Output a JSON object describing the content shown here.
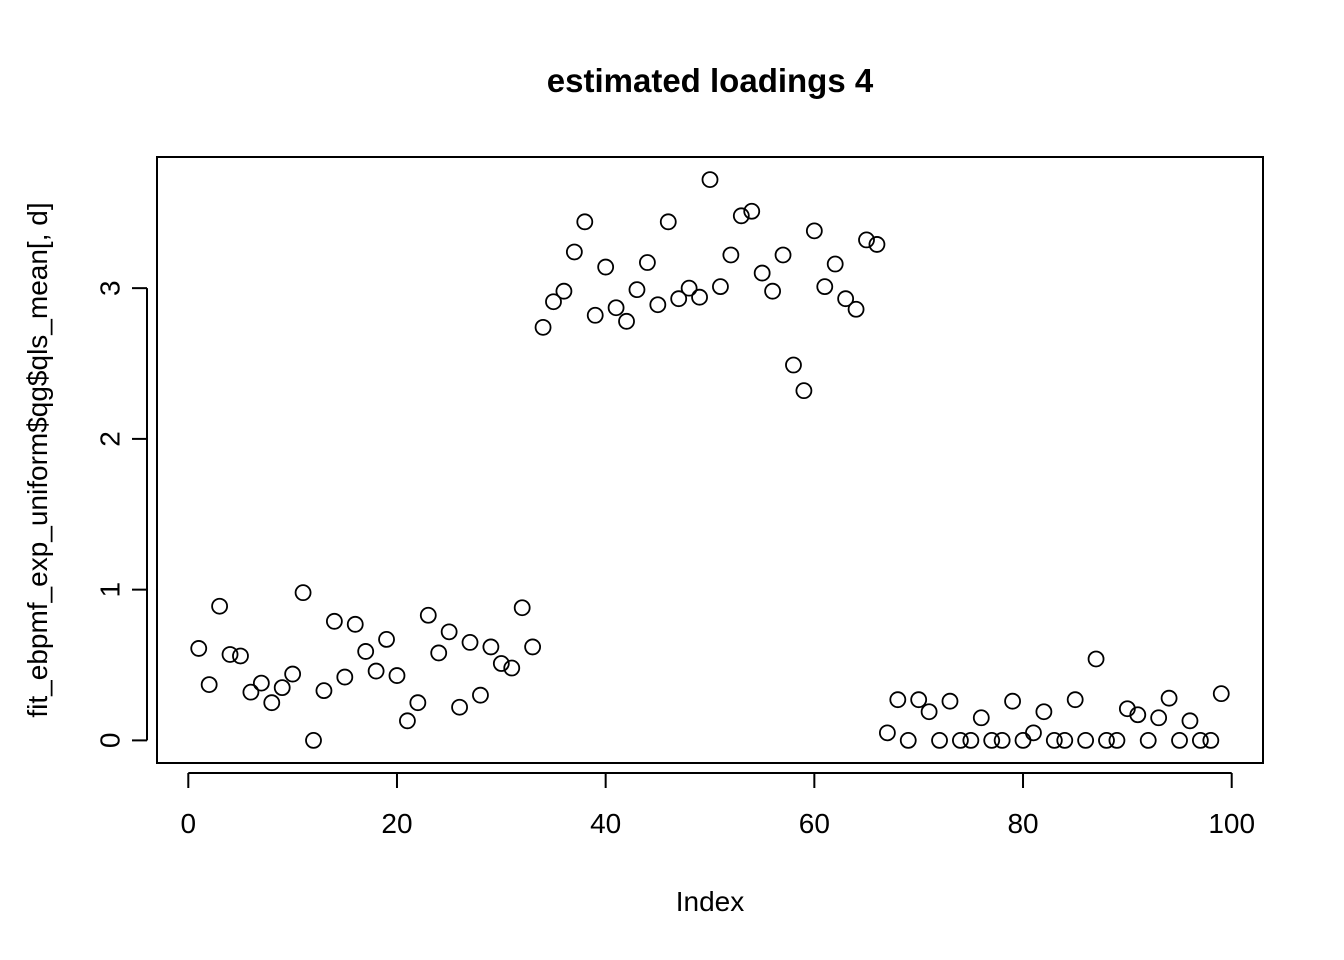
{
  "chart_data": {
    "type": "scatter",
    "title": "estimated loadings 4",
    "xlabel": "Index",
    "ylabel": "fit_ebpmf_exp_uniform$qg$qls_mean[, d]",
    "xlim": [
      -3,
      103
    ],
    "ylim": [
      -0.15,
      3.87
    ],
    "xticks": [
      0,
      20,
      40,
      60,
      80,
      100
    ],
    "xtick_labels": [
      "0",
      "20",
      "40",
      "60",
      "80",
      "100"
    ],
    "yticks": [
      0,
      1,
      2,
      3
    ],
    "ytick_labels": [
      "0",
      "1",
      "2",
      "3"
    ],
    "grid": false,
    "legend": "none",
    "marker": "open-circle",
    "x": [
      1,
      2,
      3,
      4,
      5,
      6,
      7,
      8,
      9,
      10,
      11,
      12,
      13,
      14,
      15,
      16,
      17,
      18,
      19,
      20,
      21,
      22,
      23,
      24,
      25,
      26,
      27,
      28,
      29,
      30,
      31,
      32,
      33,
      34,
      35,
      36,
      37,
      38,
      39,
      40,
      41,
      42,
      43,
      44,
      45,
      46,
      47,
      48,
      49,
      50,
      51,
      52,
      53,
      54,
      55,
      56,
      57,
      58,
      59,
      60,
      61,
      62,
      63,
      64,
      65,
      66,
      67,
      68,
      69,
      70,
      71,
      72,
      73,
      74,
      75,
      76,
      77,
      78,
      79,
      80,
      81,
      82,
      83,
      84,
      85,
      86,
      87,
      88,
      89,
      90,
      91,
      92,
      93,
      94,
      95,
      96,
      97,
      98,
      99
    ],
    "y": [
      0.61,
      0.37,
      0.89,
      0.57,
      0.56,
      0.32,
      0.38,
      0.25,
      0.35,
      0.44,
      0.98,
      0.0,
      0.33,
      0.79,
      0.42,
      0.77,
      0.59,
      0.46,
      0.67,
      0.43,
      0.13,
      0.25,
      0.83,
      0.58,
      0.72,
      0.22,
      0.65,
      0.3,
      0.62,
      0.51,
      0.48,
      0.88,
      0.62,
      2.74,
      2.91,
      2.98,
      3.24,
      3.44,
      2.82,
      3.14,
      2.87,
      2.78,
      2.99,
      3.17,
      2.89,
      3.44,
      2.93,
      3.0,
      2.94,
      3.72,
      3.01,
      3.22,
      3.48,
      3.51,
      3.1,
      2.98,
      3.22,
      2.49,
      2.32,
      3.38,
      3.01,
      3.16,
      2.93,
      2.86,
      3.32,
      3.29,
      0.05,
      0.27,
      0.0,
      0.27,
      0.19,
      0.0,
      0.26,
      0.0,
      0.0,
      0.15,
      0.0,
      0.0,
      0.26,
      0.0,
      0.05,
      0.19,
      0.0,
      0.0,
      0.27,
      0.0,
      0.54,
      0.0,
      0.0,
      0.21,
      0.17,
      0.0,
      0.15,
      0.28,
      0.0,
      0.13,
      0.0,
      0.0,
      0.31
    ]
  }
}
